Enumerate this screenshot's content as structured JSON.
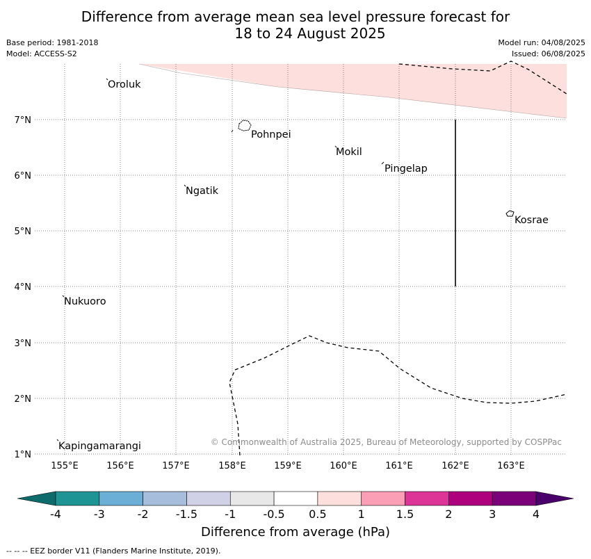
{
  "title_line1": "Difference from average mean sea level pressure forecast for",
  "title_line2": "18 to 24 August 2025",
  "meta": {
    "base_period": "Base period: 1981-2018",
    "model": "Model: ACCESS-S2",
    "model_run": "Model run: 04/08/2025",
    "issued": "Issued: 06/08/2025"
  },
  "map": {
    "lon_range": [
      154.5,
      164.0
    ],
    "lat_range": [
      1,
      8
    ],
    "lon_ticks": [
      "155°E",
      "156°E",
      "157°E",
      "158°E",
      "159°E",
      "160°E",
      "161°E",
      "162°E",
      "163°E"
    ],
    "lat_ticks": [
      "7°N",
      "6°N",
      "5°N",
      "4°N",
      "3°N",
      "2°N",
      "1°N"
    ],
    "places": [
      {
        "name": "Oroluk"
      },
      {
        "name": "Pohnpei"
      },
      {
        "name": "Mokil"
      },
      {
        "name": "Pingelap"
      },
      {
        "name": "Ngatik"
      },
      {
        "name": "Kosrae"
      },
      {
        "name": "Nukuoro"
      },
      {
        "name": "Kapingamarangi"
      }
    ],
    "shaded_region_color": "#fde0dd",
    "credit": "© Commonwealth of Australia 2025, Bureau of Meteorology, supported by COSPPac"
  },
  "colorbar": {
    "colors": [
      "#0d6b6b",
      "#1f9494",
      "#6baed6",
      "#a6bddb",
      "#d0d1e6",
      "#e8e8e8",
      "#ffffff",
      "#fde0dd",
      "#fa9fb5",
      "#dd3497",
      "#ae017e",
      "#7a0177",
      "#49006a"
    ],
    "labels": [
      "-4",
      "-3",
      "-2",
      "-1.5",
      "-1",
      "-0.5",
      "0.5",
      "1",
      "1.5",
      "2",
      "3",
      "4"
    ],
    "title": "Difference from average (hPa)"
  },
  "footnote": "--  --  -- EEZ border V11 (Flanders Marine Institute, 2019)."
}
